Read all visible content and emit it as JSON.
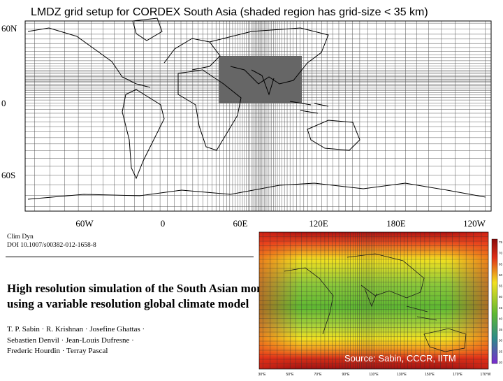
{
  "figure_title": "LMDZ grid setup for CORDEX South Asia (shaded region has grid-size < 35 km)",
  "lat_labels": [
    "60N",
    "0",
    "60S"
  ],
  "lon_labels": [
    "60W",
    "0",
    "60E",
    "120E",
    "180E",
    "120W"
  ],
  "paper": {
    "journal": "Clim Dyn",
    "doi": "DOI 10.1007/s00382-012-1658-8",
    "title_line1": "High resolution simulation of the South Asian monsoon",
    "title_line2": "using a variable resolution global climate model",
    "authors_line1": "T. P. Sabin · R. Krishnan · Josefine Ghattas ·",
    "authors_line2": "Sebastien Denvil · Jean-Louis Dufresne ·",
    "authors_line3": "Frederic Hourdin · Terray Pascal"
  },
  "inset": {
    "x_ticks": [
      "30°E",
      "50°E",
      "70°E",
      "90°E",
      "110°E",
      "130°E",
      "150°E",
      "170°E",
      "170°W"
    ],
    "colorbar_ticks": [
      "75",
      "70",
      "65",
      "60",
      "55",
      "50",
      "45",
      "40",
      "35",
      "30",
      "25",
      "20"
    ],
    "source_text": "Source:  Sabin, CCCR, IITM"
  },
  "colors": {
    "shaded_region": "#666666",
    "grid_line": "#555555",
    "inset_green": "#5fb832",
    "inset_red": "#b01010",
    "inset_yellow": "#f2e020"
  }
}
